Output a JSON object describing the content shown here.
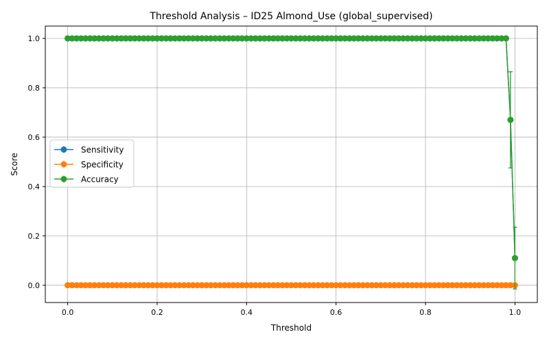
{
  "chart_data": {
    "type": "line",
    "title": "Threshold Analysis – ID25 Almond_Use (global_supervised)",
    "xlabel": "Threshold",
    "ylabel": "Score",
    "xlim": [
      -0.05,
      1.05
    ],
    "ylim": [
      -0.07,
      1.05
    ],
    "x_ticks": [
      0.0,
      0.2,
      0.4,
      0.6,
      0.8,
      1.0
    ],
    "x_tick_labels": [
      "0.0",
      "0.2",
      "0.4",
      "0.6",
      "0.8",
      "1.0"
    ],
    "y_ticks": [
      0.0,
      0.2,
      0.4,
      0.6,
      0.8,
      1.0
    ],
    "y_tick_labels": [
      "0.0",
      "0.2",
      "0.4",
      "0.6",
      "0.8",
      "1.0"
    ],
    "grid": true,
    "legend_position": "center-left",
    "x": {
      "start": 0.0,
      "end": 0.99,
      "step": 0.01,
      "extra": [
        1.0
      ]
    },
    "series": [
      {
        "name": "Sensitivity",
        "color": "#1f77b4",
        "default_value": 1.0,
        "overrides": {
          "0.99": 0.67,
          "1.0": 0.11
        },
        "errors": {
          "0.99": 0.195,
          "1.0": 0.125
        },
        "marker": "circle"
      },
      {
        "name": "Specificity",
        "color": "#ff7f0e",
        "default_value": 0.0,
        "overrides": {},
        "errors": {},
        "marker": "circle"
      },
      {
        "name": "Accuracy",
        "color": "#2ca02c",
        "default_value": 1.0,
        "overrides": {
          "0.99": 0.67,
          "1.0": 0.11
        },
        "errors": {
          "0.99": 0.195,
          "1.0": 0.125
        },
        "marker": "circle"
      }
    ]
  }
}
